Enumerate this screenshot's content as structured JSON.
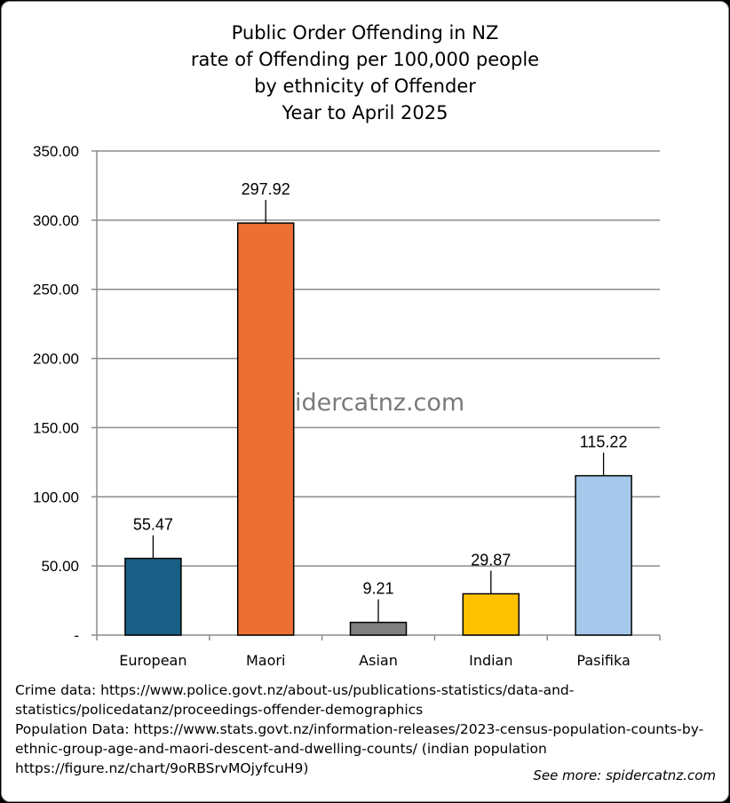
{
  "chart_data": {
    "type": "bar",
    "title_lines": [
      "Public Order Offending in NZ",
      "rate of Offending per 100,000 people",
      "by ethnicity of Offender",
      "Year to April 2025"
    ],
    "categories": [
      "European",
      "Maori",
      "Asian",
      "Indian",
      "Pasifika"
    ],
    "values": [
      55.47,
      297.92,
      9.21,
      29.87,
      115.22
    ],
    "data_labels": [
      "55.47",
      "297.92",
      "9.21",
      "29.87",
      "115.22"
    ],
    "colors": [
      "#1a5f85",
      "#ec7034",
      "#7f7f7f",
      "#fdc100",
      "#a6c8ea"
    ],
    "ylim": [
      0,
      350
    ],
    "yticks": [
      0,
      50,
      100,
      150,
      200,
      250,
      300,
      350
    ],
    "ytick_labels": [
      "-",
      "50.00",
      "100.00",
      "150.00",
      "200.00",
      "250.00",
      "300.00",
      "350.00"
    ],
    "grid": true,
    "xlabel": "",
    "ylabel": "",
    "watermark": "spidercatnz.com"
  },
  "sources": [
    "Crime data: https://www.police.govt.nz/about-us/publications-statistics/data-and-",
    "statistics/policedatanz/proceedings-offender-demographics",
    "Population Data: https://www.stats.govt.nz/information-releases/2023-census-population-counts-by-",
    "ethnic-group-age-and-maori-descent-and-dwelling-counts/ (indian population",
    "https://figure.nz/chart/9oRBSrvMOjyfcuH9)"
  ],
  "see_more": "See more: spidercatnz.com"
}
